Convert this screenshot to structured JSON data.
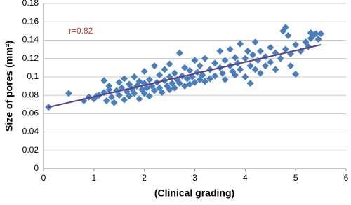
{
  "chart_data": {
    "type": "scatter",
    "annotation": "r=0.82",
    "xlabel": "(Clinical grading)",
    "ylabel": "Size of pores (mm²)",
    "xlim": [
      0,
      6
    ],
    "xticks": [
      0,
      1,
      2,
      3,
      4,
      5,
      6
    ],
    "ylim": [
      0,
      0.18
    ],
    "yticks": [
      0,
      0.02,
      0.04,
      0.06,
      0.08,
      0.1,
      0.12,
      0.14,
      0.16,
      0.18
    ],
    "grid": true,
    "series": [
      {
        "color": "#4a7ebb",
        "x": [
          0.1,
          0.5,
          0.8,
          0.9,
          1.0,
          1.05,
          1.1,
          1.2,
          1.2,
          1.25,
          1.3,
          1.3,
          1.35,
          1.4,
          1.45,
          1.5,
          1.5,
          1.55,
          1.6,
          1.6,
          1.65,
          1.7,
          1.7,
          1.75,
          1.8,
          1.8,
          1.85,
          1.9,
          1.9,
          1.95,
          2.0,
          2.0,
          2.0,
          2.05,
          2.1,
          2.1,
          2.15,
          2.2,
          2.2,
          2.25,
          2.3,
          2.3,
          2.35,
          2.4,
          2.4,
          2.45,
          2.5,
          2.5,
          2.5,
          2.55,
          2.6,
          2.6,
          2.65,
          2.7,
          2.7,
          2.75,
          2.8,
          2.8,
          2.85,
          2.9,
          2.9,
          2.95,
          3.0,
          3.0,
          3.05,
          3.1,
          3.1,
          3.15,
          3.2,
          3.2,
          3.3,
          3.3,
          3.4,
          3.4,
          3.5,
          3.5,
          3.55,
          3.6,
          3.6,
          3.7,
          3.7,
          3.75,
          3.8,
          3.8,
          3.85,
          3.9,
          3.9,
          4.0,
          4.0,
          4.05,
          4.1,
          4.1,
          4.15,
          4.2,
          4.2,
          4.25,
          4.3,
          4.3,
          4.4,
          4.4,
          4.5,
          4.5,
          4.6,
          4.6,
          4.7,
          4.75,
          4.8,
          4.8,
          4.85,
          4.9,
          4.9,
          5.0,
          5.0,
          5.1,
          5.2,
          5.25,
          5.3,
          5.3,
          5.35,
          5.4,
          5.45,
          5.5
        ],
        "y": [
          0.067,
          0.082,
          0.074,
          0.078,
          0.076,
          0.079,
          0.08,
          0.083,
          0.096,
          0.074,
          0.086,
          0.09,
          0.078,
          0.072,
          0.085,
          0.08,
          0.094,
          0.088,
          0.075,
          0.098,
          0.084,
          0.092,
          0.079,
          0.087,
          0.082,
          0.1,
          0.09,
          0.076,
          0.095,
          0.086,
          0.082,
          0.093,
          0.106,
          0.088,
          0.079,
          0.097,
          0.09,
          0.085,
          0.112,
          0.094,
          0.088,
          0.102,
          0.083,
          0.096,
          0.108,
          0.09,
          0.086,
          0.1,
          0.114,
          0.093,
          0.088,
          0.104,
          0.097,
          0.093,
          0.126,
          0.101,
          0.09,
          0.11,
          0.098,
          0.092,
          0.107,
          0.1,
          0.094,
          0.118,
          0.105,
          0.097,
          0.112,
          0.102,
          0.095,
          0.12,
          0.108,
          0.098,
          0.115,
          0.101,
          0.11,
          0.128,
          0.104,
          0.118,
          0.097,
          0.112,
          0.13,
          0.106,
          0.121,
          0.102,
          0.115,
          0.136,
          0.108,
          0.12,
          0.1,
          0.128,
          0.112,
          0.093,
          0.124,
          0.138,
          0.108,
          0.118,
          0.128,
          0.104,
          0.122,
          0.112,
          0.132,
          0.116,
          0.126,
          0.108,
          0.12,
          0.15,
          0.154,
          0.13,
          0.145,
          0.112,
          0.125,
          0.135,
          0.103,
          0.128,
          0.138,
          0.133,
          0.142,
          0.148,
          0.145,
          0.147,
          0.141,
          0.147
        ]
      }
    ],
    "trendline": {
      "color": "#5b3f86",
      "x": [
        0.1,
        5.5
      ],
      "y": [
        0.067,
        0.135
      ]
    },
    "annotation_color": "#c0392b"
  }
}
